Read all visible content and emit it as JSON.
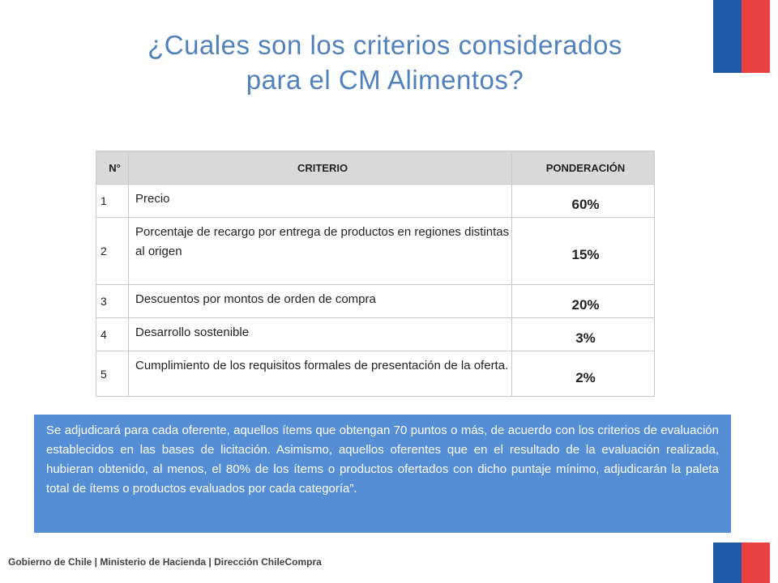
{
  "title_line1": "¿Cuales son los criterios considerados",
  "title_line2": "para el CM Alimentos?",
  "table": {
    "headers": {
      "num": "N°",
      "criterio": "CRITERIO",
      "ponderacion": "PONDERACIÓN"
    },
    "rows": [
      {
        "num": "1",
        "criterio": "Precio",
        "ponderacion": "60%"
      },
      {
        "num": "2",
        "criterio": "Porcentaje de recargo por entrega de productos en regiones distintas al origen",
        "ponderacion": "15%"
      },
      {
        "num": "3",
        "criterio": "Descuentos por montos de orden de compra",
        "ponderacion": "20%"
      },
      {
        "num": "4",
        "criterio": "Desarrollo sostenible",
        "ponderacion": "3%"
      },
      {
        "num": "5",
        "criterio": "Cumplimiento de los requisitos formales de presentación de la oferta.",
        "ponderacion": "2%"
      }
    ]
  },
  "note": "Se adjudicará para cada oferente, aquellos ítems que obtengan 70 puntos o más, de acuerdo con los criterios de evaluación establecidos en las bases de licitación. Asimismo, aquellos oferentes que en el resultado de la evaluación realizada, hubieran obtenido, al menos, el 80% de los ítems o productos ofertados con dicho puntaje mínimo, adjudicarán la paleta total de ítems o productos evaluados por cada categoría”.",
  "footer": "Gobierno de Chile | Ministerio de Hacienda | Dirección ChileCompra",
  "colors": {
    "title": "#4f81bd",
    "note_bg": "#558ed5",
    "flag_blue": "#1f5aa6",
    "flag_red": "#e8413f"
  }
}
